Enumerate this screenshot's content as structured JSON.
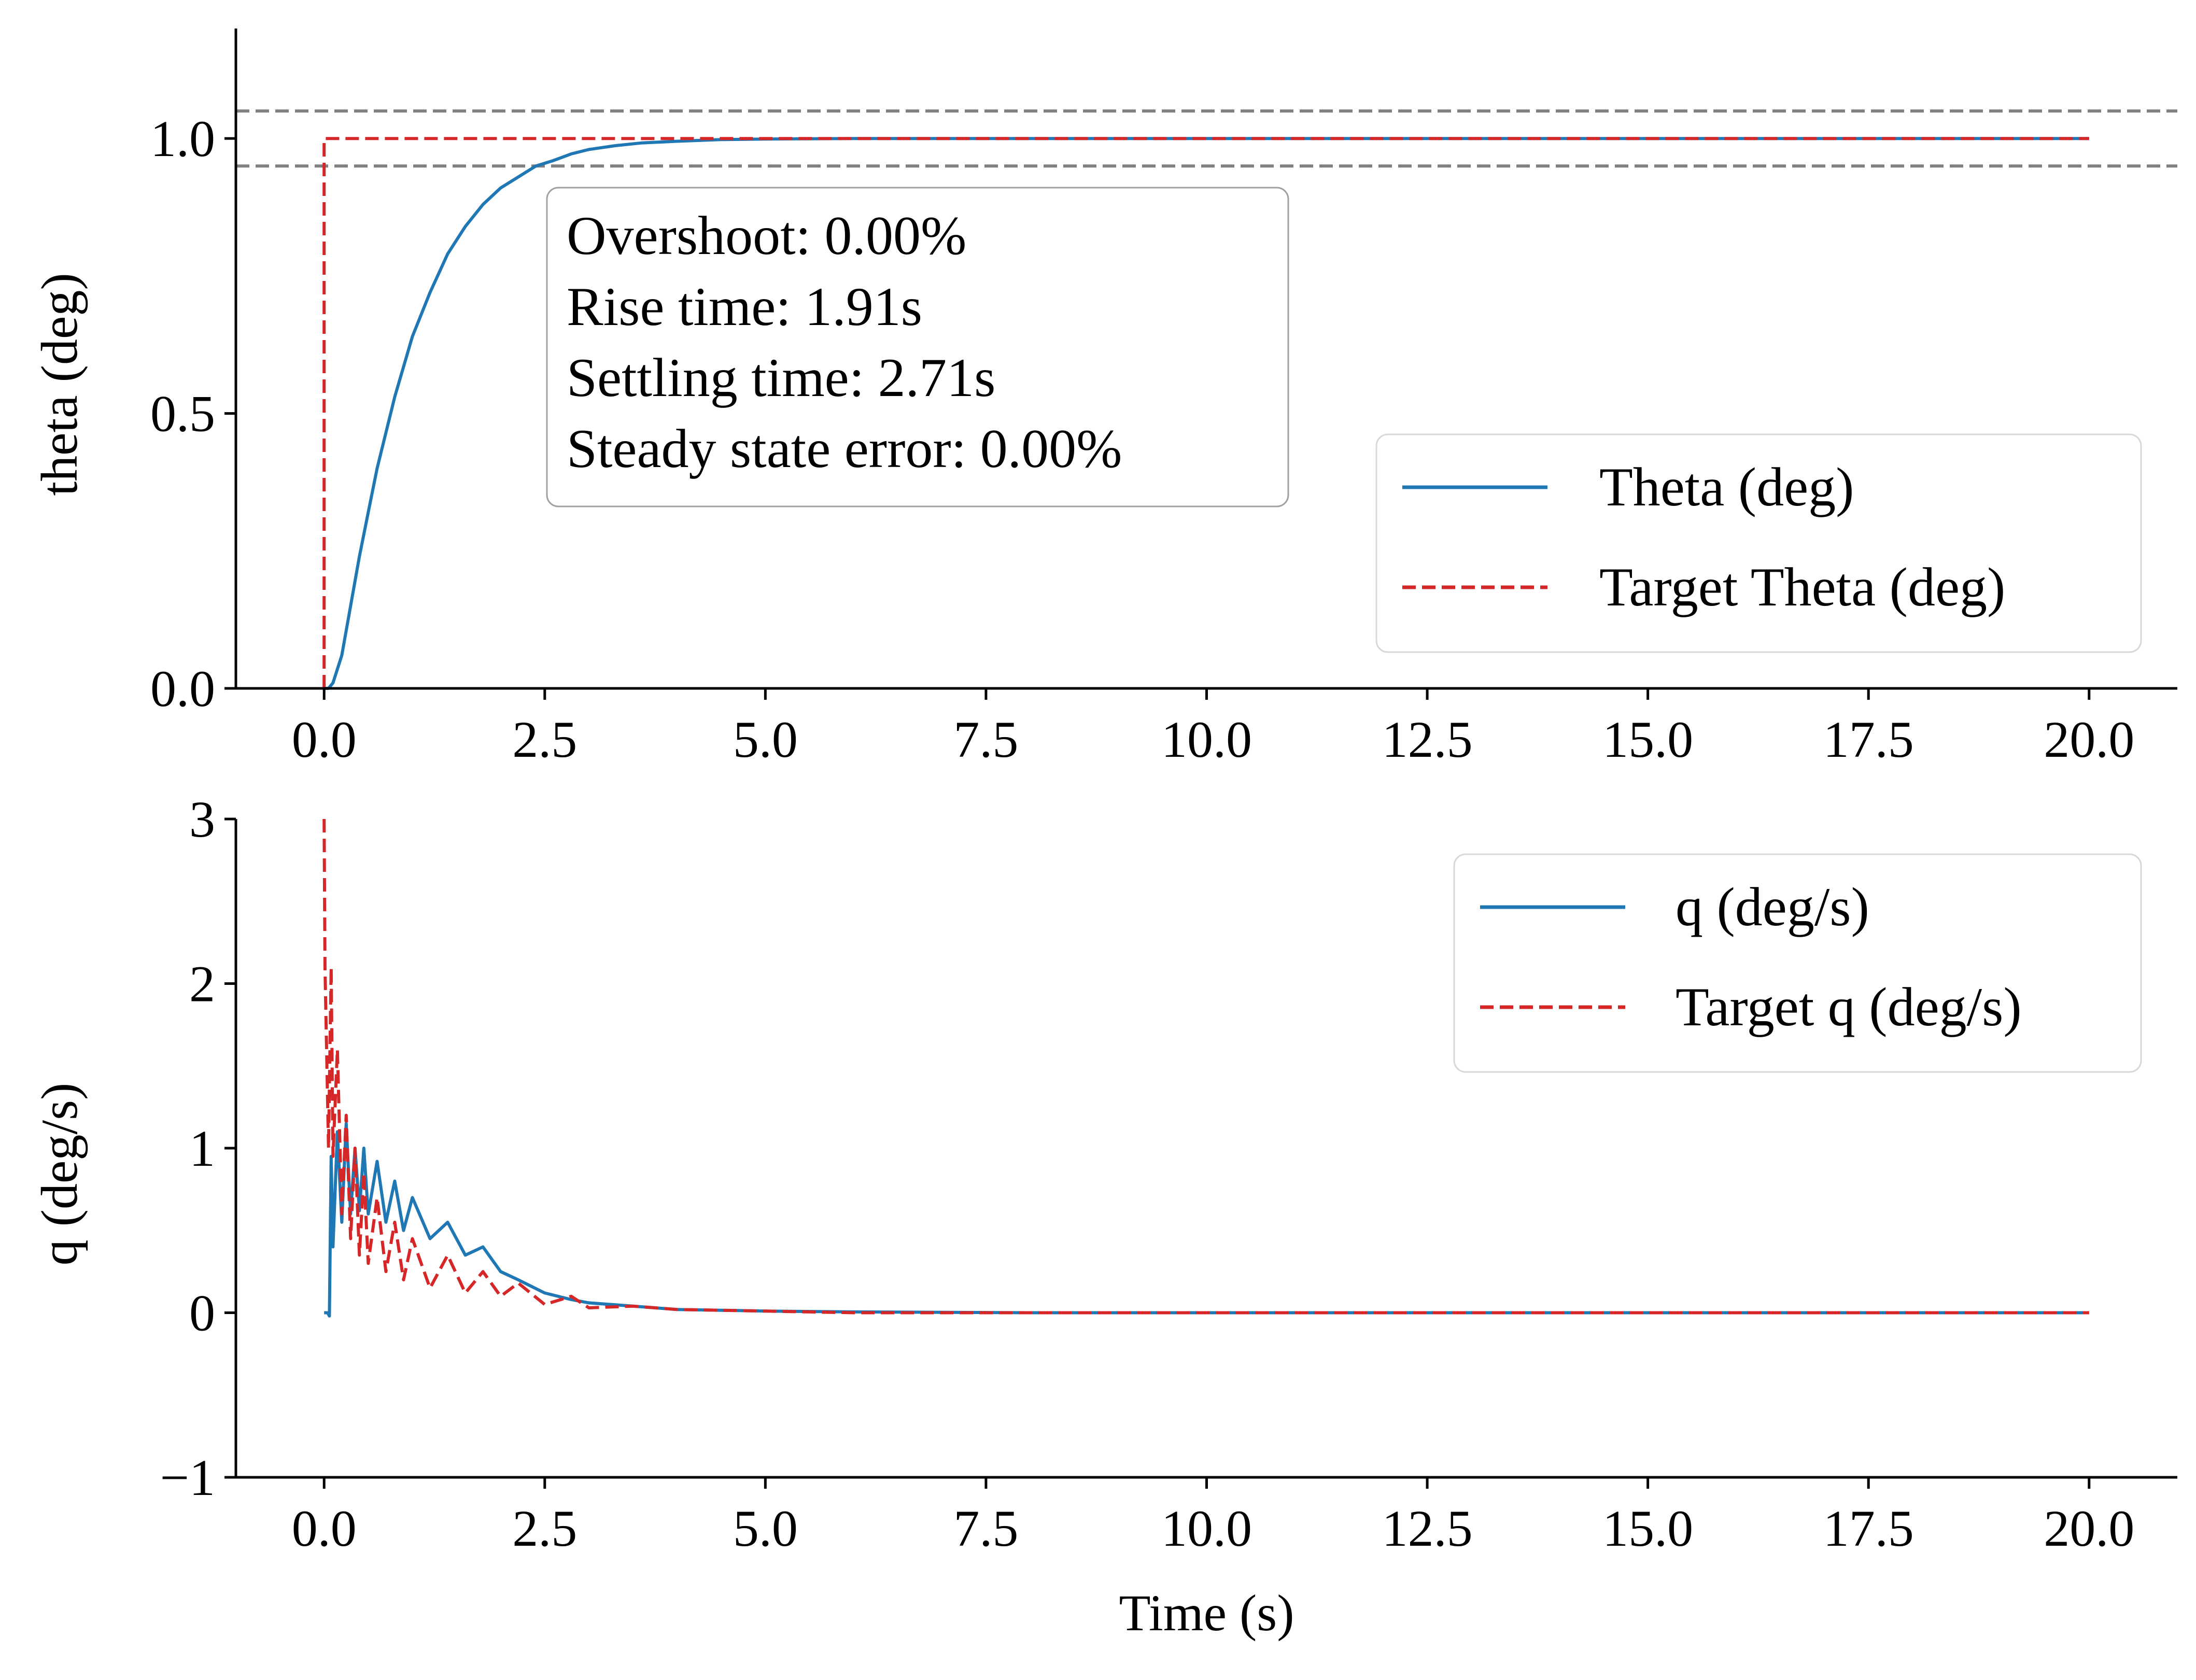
{
  "chart_data": [
    {
      "type": "line",
      "xlabel": "",
      "ylabel": "theta (deg)",
      "xlim": [
        -1.0,
        21.0
      ],
      "ylim": [
        0.0,
        1.2
      ],
      "xticks": [
        0.0,
        2.5,
        5.0,
        7.5,
        10.0,
        12.5,
        15.0,
        17.5,
        20.0
      ],
      "xtick_labels": [
        "0.0",
        "2.5",
        "5.0",
        "7.5",
        "10.0",
        "12.5",
        "15.0",
        "17.5",
        "20.0"
      ],
      "yticks": [
        0.0,
        0.5,
        1.0
      ],
      "ytick_labels": [
        "0.0",
        "0.5",
        "1.0"
      ],
      "grid": false,
      "legend_position": "lower-right",
      "reference_lines": [
        1.05,
        0.95
      ],
      "reference_line_color": "#808080",
      "annotation": [
        "Overshoot: 0.00%",
        "Rise time: 1.91s",
        "Settling time: 2.71s",
        "Steady state error: 0.00%"
      ],
      "series": [
        {
          "name": "Theta (deg)",
          "color": "#1f77b4",
          "style": "solid",
          "x": [
            0.0,
            0.05,
            0.1,
            0.2,
            0.3,
            0.4,
            0.5,
            0.6,
            0.8,
            1.0,
            1.2,
            1.4,
            1.6,
            1.8,
            2.0,
            2.2,
            2.4,
            2.6,
            2.8,
            3.0,
            3.3,
            3.6,
            4.0,
            4.5,
            5.0,
            6.0,
            7.0,
            8.0,
            10.0,
            12.0,
            15.0,
            20.0
          ],
          "y": [
            0.0,
            0.0,
            0.01,
            0.06,
            0.15,
            0.24,
            0.32,
            0.4,
            0.53,
            0.64,
            0.72,
            0.79,
            0.84,
            0.88,
            0.91,
            0.93,
            0.95,
            0.96,
            0.972,
            0.98,
            0.987,
            0.992,
            0.995,
            0.998,
            0.999,
            1.0,
            1.0,
            1.0,
            1.0,
            1.0,
            1.0,
            1.0
          ]
        },
        {
          "name": "Target Theta (deg)",
          "color": "#d62728",
          "style": "dashed",
          "x": [
            0.0,
            0.0,
            20.0
          ],
          "y": [
            0.0,
            1.0,
            1.0
          ]
        }
      ]
    },
    {
      "type": "line",
      "xlabel": "Time (s)",
      "ylabel": "q (deg/s)",
      "xlim": [
        -1.0,
        21.0
      ],
      "ylim": [
        -1.0,
        3.0
      ],
      "xticks": [
        0.0,
        2.5,
        5.0,
        7.5,
        10.0,
        12.5,
        15.0,
        17.5,
        20.0
      ],
      "xtick_labels": [
        "0.0",
        "2.5",
        "5.0",
        "7.5",
        "10.0",
        "12.5",
        "15.0",
        "17.5",
        "20.0"
      ],
      "yticks": [
        -1,
        0,
        1,
        2,
        3
      ],
      "ytick_labels": [
        "−1",
        "0",
        "1",
        "2",
        "3"
      ],
      "grid": false,
      "legend_position": "upper-right",
      "series": [
        {
          "name": "q (deg/s)",
          "color": "#1f77b4",
          "style": "solid",
          "x": [
            0.0,
            0.04,
            0.06,
            0.08,
            0.1,
            0.15,
            0.2,
            0.25,
            0.3,
            0.35,
            0.4,
            0.45,
            0.5,
            0.6,
            0.7,
            0.8,
            0.9,
            1.0,
            1.2,
            1.4,
            1.6,
            1.8,
            2.0,
            2.2,
            2.5,
            2.8,
            3.0,
            3.5,
            4.0,
            4.5,
            5.0,
            6.0,
            8.0,
            10.0,
            15.0,
            20.0
          ],
          "y": [
            0.0,
            0.0,
            -0.02,
            0.95,
            0.4,
            1.1,
            0.55,
            1.15,
            0.6,
            1.0,
            0.62,
            1.0,
            0.6,
            0.92,
            0.55,
            0.8,
            0.5,
            0.7,
            0.45,
            0.55,
            0.35,
            0.4,
            0.25,
            0.2,
            0.12,
            0.08,
            0.06,
            0.04,
            0.02,
            0.015,
            0.01,
            0.005,
            0.0,
            0.0,
            0.0,
            0.0
          ]
        },
        {
          "name": "Target q (deg/s)",
          "color": "#d62728",
          "style": "dashed",
          "x": [
            0.0,
            0.01,
            0.05,
            0.08,
            0.1,
            0.15,
            0.2,
            0.25,
            0.3,
            0.35,
            0.4,
            0.45,
            0.5,
            0.6,
            0.7,
            0.8,
            0.9,
            1.0,
            1.2,
            1.4,
            1.6,
            1.8,
            2.0,
            2.2,
            2.5,
            2.8,
            3.0,
            3.5,
            4.0,
            5.0,
            6.0,
            8.0,
            10.0,
            15.0,
            20.0
          ],
          "y": [
            3.0,
            2.1,
            1.0,
            2.1,
            0.95,
            1.6,
            0.6,
            1.2,
            0.45,
            1.0,
            0.35,
            0.85,
            0.3,
            0.7,
            0.25,
            0.55,
            0.2,
            0.45,
            0.15,
            0.35,
            0.12,
            0.25,
            0.1,
            0.18,
            0.05,
            0.1,
            0.03,
            0.04,
            0.02,
            0.01,
            0.0,
            0.0,
            0.0,
            0.0,
            0.0
          ]
        }
      ]
    }
  ]
}
